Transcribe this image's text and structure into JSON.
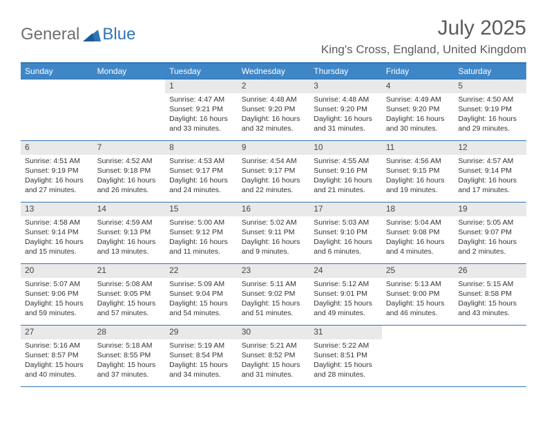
{
  "logo": {
    "part1": "General",
    "part2": "Blue"
  },
  "title": "July 2025",
  "location": "King's Cross, England, United Kingdom",
  "colors": {
    "brand_blue": "#2f75b5",
    "header_blue": "#3f86c7",
    "daynum_bg": "#e9e9e9",
    "text_gray": "#5a5a5a",
    "body_text": "#333333"
  },
  "typography": {
    "title_fontsize": 30,
    "location_fontsize": 17,
    "dayhdr_fontsize": 12,
    "cell_fontsize": 10.5
  },
  "weekday_headers": [
    "Sunday",
    "Monday",
    "Tuesday",
    "Wednesday",
    "Thursday",
    "Friday",
    "Saturday"
  ],
  "weeks": [
    [
      null,
      null,
      {
        "n": "1",
        "sr": "Sunrise: 4:47 AM",
        "ss": "Sunset: 9:21 PM",
        "dl": "Daylight: 16 hours and 33 minutes."
      },
      {
        "n": "2",
        "sr": "Sunrise: 4:48 AM",
        "ss": "Sunset: 9:20 PM",
        "dl": "Daylight: 16 hours and 32 minutes."
      },
      {
        "n": "3",
        "sr": "Sunrise: 4:48 AM",
        "ss": "Sunset: 9:20 PM",
        "dl": "Daylight: 16 hours and 31 minutes."
      },
      {
        "n": "4",
        "sr": "Sunrise: 4:49 AM",
        "ss": "Sunset: 9:20 PM",
        "dl": "Daylight: 16 hours and 30 minutes."
      },
      {
        "n": "5",
        "sr": "Sunrise: 4:50 AM",
        "ss": "Sunset: 9:19 PM",
        "dl": "Daylight: 16 hours and 29 minutes."
      }
    ],
    [
      {
        "n": "6",
        "sr": "Sunrise: 4:51 AM",
        "ss": "Sunset: 9:19 PM",
        "dl": "Daylight: 16 hours and 27 minutes."
      },
      {
        "n": "7",
        "sr": "Sunrise: 4:52 AM",
        "ss": "Sunset: 9:18 PM",
        "dl": "Daylight: 16 hours and 26 minutes."
      },
      {
        "n": "8",
        "sr": "Sunrise: 4:53 AM",
        "ss": "Sunset: 9:17 PM",
        "dl": "Daylight: 16 hours and 24 minutes."
      },
      {
        "n": "9",
        "sr": "Sunrise: 4:54 AM",
        "ss": "Sunset: 9:17 PM",
        "dl": "Daylight: 16 hours and 22 minutes."
      },
      {
        "n": "10",
        "sr": "Sunrise: 4:55 AM",
        "ss": "Sunset: 9:16 PM",
        "dl": "Daylight: 16 hours and 21 minutes."
      },
      {
        "n": "11",
        "sr": "Sunrise: 4:56 AM",
        "ss": "Sunset: 9:15 PM",
        "dl": "Daylight: 16 hours and 19 minutes."
      },
      {
        "n": "12",
        "sr": "Sunrise: 4:57 AM",
        "ss": "Sunset: 9:14 PM",
        "dl": "Daylight: 16 hours and 17 minutes."
      }
    ],
    [
      {
        "n": "13",
        "sr": "Sunrise: 4:58 AM",
        "ss": "Sunset: 9:14 PM",
        "dl": "Daylight: 16 hours and 15 minutes."
      },
      {
        "n": "14",
        "sr": "Sunrise: 4:59 AM",
        "ss": "Sunset: 9:13 PM",
        "dl": "Daylight: 16 hours and 13 minutes."
      },
      {
        "n": "15",
        "sr": "Sunrise: 5:00 AM",
        "ss": "Sunset: 9:12 PM",
        "dl": "Daylight: 16 hours and 11 minutes."
      },
      {
        "n": "16",
        "sr": "Sunrise: 5:02 AM",
        "ss": "Sunset: 9:11 PM",
        "dl": "Daylight: 16 hours and 9 minutes."
      },
      {
        "n": "17",
        "sr": "Sunrise: 5:03 AM",
        "ss": "Sunset: 9:10 PM",
        "dl": "Daylight: 16 hours and 6 minutes."
      },
      {
        "n": "18",
        "sr": "Sunrise: 5:04 AM",
        "ss": "Sunset: 9:08 PM",
        "dl": "Daylight: 16 hours and 4 minutes."
      },
      {
        "n": "19",
        "sr": "Sunrise: 5:05 AM",
        "ss": "Sunset: 9:07 PM",
        "dl": "Daylight: 16 hours and 2 minutes."
      }
    ],
    [
      {
        "n": "20",
        "sr": "Sunrise: 5:07 AM",
        "ss": "Sunset: 9:06 PM",
        "dl": "Daylight: 15 hours and 59 minutes."
      },
      {
        "n": "21",
        "sr": "Sunrise: 5:08 AM",
        "ss": "Sunset: 9:05 PM",
        "dl": "Daylight: 15 hours and 57 minutes."
      },
      {
        "n": "22",
        "sr": "Sunrise: 5:09 AM",
        "ss": "Sunset: 9:04 PM",
        "dl": "Daylight: 15 hours and 54 minutes."
      },
      {
        "n": "23",
        "sr": "Sunrise: 5:11 AM",
        "ss": "Sunset: 9:02 PM",
        "dl": "Daylight: 15 hours and 51 minutes."
      },
      {
        "n": "24",
        "sr": "Sunrise: 5:12 AM",
        "ss": "Sunset: 9:01 PM",
        "dl": "Daylight: 15 hours and 49 minutes."
      },
      {
        "n": "25",
        "sr": "Sunrise: 5:13 AM",
        "ss": "Sunset: 9:00 PM",
        "dl": "Daylight: 15 hours and 46 minutes."
      },
      {
        "n": "26",
        "sr": "Sunrise: 5:15 AM",
        "ss": "Sunset: 8:58 PM",
        "dl": "Daylight: 15 hours and 43 minutes."
      }
    ],
    [
      {
        "n": "27",
        "sr": "Sunrise: 5:16 AM",
        "ss": "Sunset: 8:57 PM",
        "dl": "Daylight: 15 hours and 40 minutes."
      },
      {
        "n": "28",
        "sr": "Sunrise: 5:18 AM",
        "ss": "Sunset: 8:55 PM",
        "dl": "Daylight: 15 hours and 37 minutes."
      },
      {
        "n": "29",
        "sr": "Sunrise: 5:19 AM",
        "ss": "Sunset: 8:54 PM",
        "dl": "Daylight: 15 hours and 34 minutes."
      },
      {
        "n": "30",
        "sr": "Sunrise: 5:21 AM",
        "ss": "Sunset: 8:52 PM",
        "dl": "Daylight: 15 hours and 31 minutes."
      },
      {
        "n": "31",
        "sr": "Sunrise: 5:22 AM",
        "ss": "Sunset: 8:51 PM",
        "dl": "Daylight: 15 hours and 28 minutes."
      },
      null,
      null
    ]
  ]
}
